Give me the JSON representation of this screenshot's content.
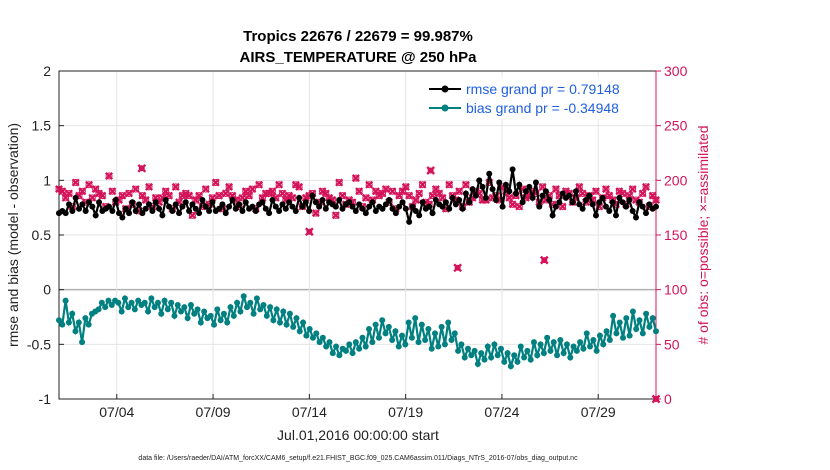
{
  "chart_data": {
    "type": "line",
    "title_line1": "Tropics 22676 / 22679 = 99.987%",
    "title_line2": "AIRS_TEMPERATURE @ 250 hPa",
    "xlabel": "Jul.01,2016 00:00:00 start",
    "ylabel": "rmse and bias (model - observation)",
    "ylabel_right": "# of obs: o=possible; ×=assimilated",
    "footer": "data file: /Users/raeder/DAI/ATM_forcXX/CAM6_setup/f.e21.FHIST_BGC.f09_025.CAM6assim.011/Diags_NTrS_2016-07/obs_diag_output.nc",
    "ylim": [
      -1,
      2
    ],
    "ylim_right": [
      0,
      300
    ],
    "xlim": [
      1.0,
      32.0
    ],
    "yticks": [
      "-1",
      "-0.5",
      "0",
      "0.5",
      "1",
      "1.5",
      "2"
    ],
    "yticks_right": [
      "0",
      "50",
      "100",
      "150",
      "200",
      "250",
      "300"
    ],
    "xticks": [
      {
        "value": 4,
        "label": "07/04"
      },
      {
        "value": 9,
        "label": "07/09"
      },
      {
        "value": 14,
        "label": "07/14"
      },
      {
        "value": 19,
        "label": "07/19"
      },
      {
        "value": 24,
        "label": "07/24"
      },
      {
        "value": 29,
        "label": "07/29"
      }
    ],
    "series": [
      {
        "name": "rmse grand pr = 0.79148",
        "color": "#000000",
        "axis": "left",
        "values": [
          0.7,
          0.72,
          0.7,
          0.78,
          0.72,
          0.84,
          0.74,
          0.78,
          0.72,
          0.8,
          0.76,
          0.68,
          0.8,
          0.72,
          0.74,
          0.76,
          0.72,
          0.82,
          0.7,
          0.66,
          0.74,
          0.7,
          0.8,
          0.72,
          0.78,
          0.7,
          0.74,
          0.78,
          0.72,
          0.8,
          0.74,
          0.68,
          0.82,
          0.76,
          0.72,
          0.78,
          0.7,
          0.76,
          0.8,
          0.72,
          0.78,
          0.74,
          0.7,
          0.82,
          0.76,
          0.72,
          0.8,
          0.72,
          0.74,
          0.78,
          0.7,
          0.76,
          0.82,
          0.74,
          0.78,
          0.72,
          0.8,
          0.74,
          0.76,
          0.72,
          0.78,
          0.8,
          0.74,
          0.7,
          0.82,
          0.76,
          0.72,
          0.78,
          0.74,
          0.8,
          0.76,
          0.72,
          0.84,
          0.76,
          0.8,
          0.72,
          0.86,
          0.8,
          0.76,
          0.82,
          0.74,
          0.8,
          0.78,
          0.76,
          0.82,
          0.74,
          0.78,
          0.8,
          0.76,
          0.72,
          0.78,
          0.74,
          0.7,
          0.76,
          0.8,
          0.72,
          0.76,
          0.74,
          0.78,
          0.82,
          0.74,
          0.7,
          0.76,
          0.8,
          0.74,
          0.62,
          0.76,
          0.72,
          0.68,
          0.8,
          0.74,
          0.76,
          0.7,
          0.82,
          0.78,
          0.76,
          0.8,
          0.74,
          0.84,
          0.78,
          0.82,
          0.74,
          0.88,
          0.8,
          0.92,
          0.86,
          1.0,
          0.94,
          0.84,
          1.06,
          0.92,
          0.82,
          0.98,
          0.76,
          0.96,
          0.9,
          1.1,
          0.88,
          0.96,
          0.8,
          0.9,
          0.94,
          0.84,
          0.98,
          0.76,
          0.86,
          0.9,
          0.82,
          0.68,
          0.76,
          0.8,
          0.88,
          0.84,
          0.86,
          0.8,
          0.9,
          0.78,
          0.74,
          0.82,
          0.86,
          0.78,
          0.68,
          0.8,
          0.84,
          0.76,
          0.72,
          0.8,
          0.68,
          0.84,
          0.8,
          0.76,
          0.82,
          0.72,
          0.66,
          0.8,
          0.76,
          0.7,
          0.78,
          0.74,
          0.76
        ]
      },
      {
        "name": "bias grand pr = -0.34948",
        "color": "#008080",
        "axis": "left",
        "values": [
          -0.28,
          -0.32,
          -0.1,
          -0.3,
          -0.22,
          -0.38,
          -0.3,
          -0.48,
          -0.26,
          -0.32,
          -0.22,
          -0.2,
          -0.18,
          -0.12,
          -0.16,
          -0.1,
          -0.14,
          -0.1,
          -0.12,
          -0.2,
          -0.08,
          -0.16,
          -0.12,
          -0.18,
          -0.1,
          -0.14,
          -0.12,
          -0.2,
          -0.08,
          -0.16,
          -0.12,
          -0.22,
          -0.1,
          -0.18,
          -0.12,
          -0.24,
          -0.14,
          -0.2,
          -0.16,
          -0.26,
          -0.14,
          -0.22,
          -0.18,
          -0.3,
          -0.2,
          -0.26,
          -0.24,
          -0.32,
          -0.18,
          -0.28,
          -0.22,
          -0.3,
          -0.16,
          -0.24,
          -0.12,
          -0.2,
          -0.06,
          -0.16,
          -0.12,
          -0.22,
          -0.08,
          -0.18,
          -0.14,
          -0.24,
          -0.16,
          -0.28,
          -0.18,
          -0.3,
          -0.2,
          -0.32,
          -0.22,
          -0.34,
          -0.26,
          -0.38,
          -0.3,
          -0.42,
          -0.36,
          -0.44,
          -0.4,
          -0.48,
          -0.44,
          -0.52,
          -0.48,
          -0.58,
          -0.52,
          -0.6,
          -0.54,
          -0.56,
          -0.5,
          -0.58,
          -0.48,
          -0.54,
          -0.44,
          -0.52,
          -0.36,
          -0.48,
          -0.32,
          -0.44,
          -0.28,
          -0.4,
          -0.34,
          -0.46,
          -0.38,
          -0.52,
          -0.42,
          -0.5,
          -0.3,
          -0.44,
          -0.26,
          -0.48,
          -0.32,
          -0.46,
          -0.36,
          -0.54,
          -0.4,
          -0.52,
          -0.34,
          -0.5,
          -0.3,
          -0.46,
          -0.4,
          -0.56,
          -0.5,
          -0.62,
          -0.54,
          -0.6,
          -0.56,
          -0.68,
          -0.58,
          -0.64,
          -0.52,
          -0.62,
          -0.5,
          -0.6,
          -0.54,
          -0.66,
          -0.58,
          -0.7,
          -0.6,
          -0.66,
          -0.52,
          -0.62,
          -0.56,
          -0.64,
          -0.48,
          -0.6,
          -0.5,
          -0.58,
          -0.44,
          -0.56,
          -0.48,
          -0.6,
          -0.46,
          -0.58,
          -0.5,
          -0.62,
          -0.52,
          -0.56,
          -0.48,
          -0.54,
          -0.4,
          -0.52,
          -0.46,
          -0.56,
          -0.42,
          -0.5,
          -0.38,
          -0.46,
          -0.24,
          -0.4,
          -0.3,
          -0.44,
          -0.26,
          -0.42,
          -0.2,
          -0.36,
          -0.28,
          -0.4,
          -0.22,
          -0.34,
          -0.26,
          -0.38
        ]
      },
      {
        "name": "obs_possible",
        "color": "#d4145a",
        "axis": "right",
        "marker": "o",
        "values": [
          192,
          190,
          184,
          188,
          176,
          198,
          186,
          190,
          180,
          196,
          184,
          192,
          188,
          186,
          176,
          204,
          190,
          180,
          182,
          186,
          174,
          188,
          178,
          192,
          172,
          186,
          182,
          194,
          176,
          184,
          180,
          184,
          190,
          186,
          174,
          194,
          180,
          186,
          188,
          186,
          168,
          182,
          186,
          176,
          192,
          178,
          184,
          198,
          186,
          174,
          188,
          194,
          186,
          182,
          176,
          184,
          190,
          186,
          192,
          174,
          196,
          184,
          188,
          188,
          190,
          184,
          196,
          188,
          182,
          186,
          184,
          196,
          194,
          176,
          184,
          186,
          188,
          170,
          180,
          190,
          188,
          184,
          182,
          168,
          198,
          186,
          178,
          182,
          180,
          202,
          190,
          176,
          184,
          196,
          182,
          190,
          186,
          188,
          192,
          180,
          190,
          174,
          186,
          190,
          194,
          186,
          176,
          182,
          188,
          196,
          180,
          178,
          186,
          192,
          188,
          184,
          174,
          196,
          186,
          182,
          190,
          176,
          196,
          180,
          184,
          190,
          188,
          182,
          182,
          198,
          184,
          186,
          182,
          194,
          190,
          184,
          178,
          186,
          176,
          192,
          184,
          186,
          190,
          188,
          180,
          194,
          182,
          186,
          178,
          192,
          186,
          176,
          190,
          188,
          180,
          184,
          194,
          188,
          180,
          186,
          182,
          190,
          176,
          184,
          192,
          186,
          182,
          178,
          190,
          188,
          178,
          186,
          192,
          182,
          180,
          188,
          194,
          176,
          186,
          182
        ]
      },
      {
        "name": "obs_assimilated",
        "color": "#d4145a",
        "axis": "right",
        "marker": "x",
        "values": [
          192,
          190,
          184,
          188,
          176,
          198,
          186,
          190,
          180,
          196,
          184,
          192,
          188,
          186,
          176,
          204,
          190,
          180,
          182,
          186,
          174,
          188,
          178,
          192,
          172,
          186,
          182,
          194,
          176,
          184,
          180,
          184,
          190,
          186,
          174,
          194,
          180,
          186,
          188,
          186,
          168,
          182,
          186,
          176,
          192,
          178,
          184,
          198,
          186,
          174,
          188,
          194,
          186,
          182,
          176,
          184,
          190,
          186,
          192,
          174,
          196,
          184,
          188,
          188,
          190,
          184,
          196,
          188,
          182,
          186,
          184,
          196,
          194,
          176,
          184,
          186,
          188,
          170,
          180,
          190,
          188,
          184,
          182,
          168,
          198,
          186,
          178,
          182,
          180,
          202,
          190,
          176,
          184,
          196,
          182,
          190,
          186,
          188,
          192,
          180,
          190,
          174,
          186,
          190,
          194,
          186,
          176,
          182,
          188,
          196,
          180,
          178,
          186,
          192,
          188,
          184,
          174,
          196,
          186,
          182,
          190,
          176,
          196,
          180,
          184,
          190,
          188,
          182,
          182,
          198,
          184,
          186,
          182,
          194,
          190,
          184,
          178,
          186,
          176,
          192,
          184,
          186,
          190,
          188,
          180,
          194,
          182,
          186,
          178,
          192,
          186,
          176,
          190,
          188,
          180,
          184,
          194,
          188,
          180,
          186,
          182,
          190,
          176,
          184,
          192,
          186,
          182,
          178,
          190,
          188,
          178,
          186,
          192,
          182,
          180,
          188,
          194,
          176,
          186,
          182
        ]
      }
    ],
    "outliers_right": [
      {
        "x": 5.3,
        "y": 211
      },
      {
        "x": 14.0,
        "y": 153
      },
      {
        "x": 21.7,
        "y": 120
      },
      {
        "x": 26.2,
        "y": 127
      },
      {
        "x": 20.3,
        "y": 209
      },
      {
        "x": 32.0,
        "y": 0
      }
    ],
    "legend": [
      {
        "label": "rmse grand pr = 0.79148",
        "color": "#000000"
      },
      {
        "label": "bias grand pr = -0.34948",
        "color": "#008080"
      }
    ],
    "legend_position": "top-right",
    "grid": true
  }
}
